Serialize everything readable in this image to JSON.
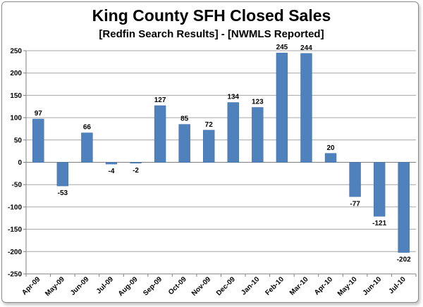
{
  "chart_data": {
    "type": "bar",
    "title": "King County SFH Closed Sales",
    "subtitle": "[Redfin Search Results] - [NWMLS Reported]",
    "xlabel": "",
    "ylabel": "",
    "categories": [
      "Apr-09",
      "May-09",
      "Jun-09",
      "Jul-09",
      "Aug-09",
      "Sep-09",
      "Oct-09",
      "Nov-09",
      "Dec-09",
      "Jan-10",
      "Feb-10",
      "Mar-10",
      "Apr-10",
      "May-10",
      "Jun-10",
      "Jul-10"
    ],
    "values": [
      97,
      -53,
      66,
      -4,
      -2,
      127,
      85,
      72,
      134,
      123,
      245,
      244,
      20,
      -77,
      -121,
      -202
    ],
    "data_labels": [
      "97",
      "-53",
      "66",
      "-4",
      "-2",
      "127",
      "85",
      "72",
      "134",
      "123",
      "245",
      "244",
      "20",
      "-77",
      "-121",
      "-202"
    ],
    "ylim": [
      -250,
      250
    ],
    "yticks": [
      250,
      200,
      150,
      100,
      50,
      0,
      -50,
      -100,
      -150,
      -200,
      -250
    ],
    "grid": "horizontal",
    "legend": "none",
    "bar_color": "#4f81bd"
  }
}
